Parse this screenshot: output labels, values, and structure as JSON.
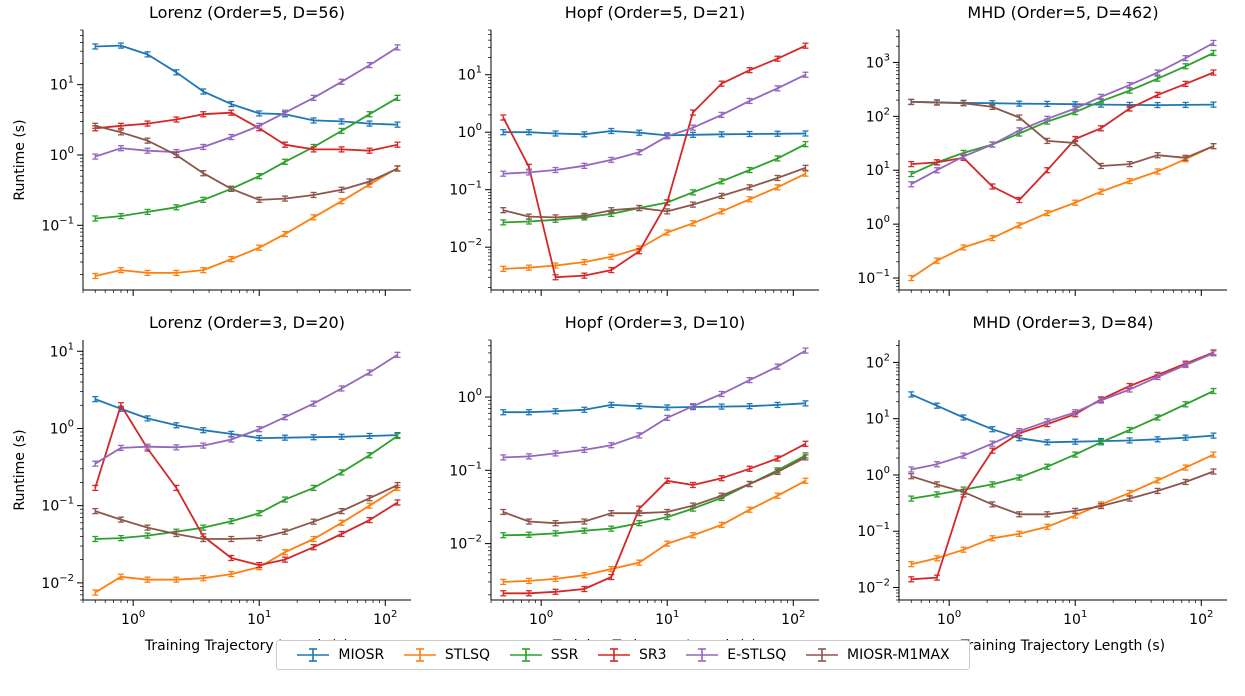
{
  "figure": {
    "xlabel": "Training Trajectory Length (s)",
    "ylabel": "Runtime (s)"
  },
  "chart_data": [
    {
      "type": "line",
      "title": "Lorenz (Order=5, D=56)",
      "ylabel": "Runtime (s)",
      "xlabel": "",
      "xscale": "log",
      "yscale": "log",
      "xlim": [
        0.4,
        160
      ],
      "ylim": [
        0.012,
        60
      ],
      "xticks": [
        1,
        10,
        100
      ],
      "xtick_labels": [],
      "yticks": [
        0.1,
        1,
        10
      ],
      "ytick_labels": [
        "10^-1",
        "10^0",
        "10^1"
      ],
      "x": [
        0.5,
        0.8,
        1.3,
        2.2,
        3.6,
        6,
        10,
        16,
        27,
        45,
        75,
        125
      ],
      "series": [
        {
          "name": "MIOSR",
          "color": "#1f77b4",
          "values": [
            35,
            36,
            27,
            15,
            8,
            5.3,
            3.9,
            3.8,
            3.1,
            3.0,
            2.8,
            2.7
          ]
        },
        {
          "name": "STLSQ",
          "color": "#ff7f0e",
          "values": [
            0.019,
            0.023,
            0.021,
            0.021,
            0.023,
            0.033,
            0.048,
            0.075,
            0.13,
            0.22,
            0.38,
            0.65
          ]
        },
        {
          "name": "SSR",
          "color": "#2ca02c",
          "values": [
            0.125,
            0.135,
            0.155,
            0.18,
            0.23,
            0.33,
            0.5,
            0.8,
            1.3,
            2.2,
            3.8,
            6.5
          ]
        },
        {
          "name": "SR3",
          "color": "#d62728",
          "values": [
            2.4,
            2.6,
            2.8,
            3.2,
            3.8,
            4.0,
            2.4,
            1.4,
            1.2,
            1.2,
            1.15,
            1.4
          ]
        },
        {
          "name": "E-STLSQ",
          "color": "#9467bd",
          "values": [
            0.95,
            1.25,
            1.15,
            1.1,
            1.3,
            1.8,
            2.6,
            4.0,
            6.5,
            11,
            19,
            34
          ]
        },
        {
          "name": "MIOSR-M1MAX",
          "color": "#8c564b",
          "values": [
            2.6,
            2.1,
            1.6,
            1.0,
            0.55,
            0.33,
            0.23,
            0.24,
            0.27,
            0.32,
            0.42,
            0.64
          ]
        }
      ]
    },
    {
      "type": "line",
      "title": "Hopf (Order=5, D=21)",
      "ylabel": "",
      "xlabel": "",
      "xscale": "log",
      "yscale": "log",
      "xlim": [
        0.4,
        160
      ],
      "ylim": [
        0.0018,
        60
      ],
      "xticks": [
        1,
        10,
        100
      ],
      "xtick_labels": [],
      "yticks": [
        0.01,
        0.1,
        1,
        10
      ],
      "ytick_labels": [
        "10^-2",
        "10^-1",
        "10^0",
        "10^1"
      ],
      "x": [
        0.5,
        0.8,
        1.3,
        2.2,
        3.6,
        6,
        10,
        16,
        27,
        45,
        75,
        125
      ],
      "series": [
        {
          "name": "MIOSR",
          "color": "#1f77b4",
          "values": [
            1.0,
            1.0,
            0.95,
            0.92,
            1.05,
            0.98,
            0.88,
            0.9,
            0.92,
            0.93,
            0.94,
            0.95
          ]
        },
        {
          "name": "STLSQ",
          "color": "#ff7f0e",
          "values": [
            0.0042,
            0.0044,
            0.0048,
            0.0055,
            0.0068,
            0.0095,
            0.018,
            0.026,
            0.042,
            0.068,
            0.11,
            0.19
          ]
        },
        {
          "name": "SSR",
          "color": "#2ca02c",
          "values": [
            0.027,
            0.028,
            0.03,
            0.033,
            0.038,
            0.048,
            0.06,
            0.09,
            0.14,
            0.22,
            0.35,
            0.62
          ]
        },
        {
          "name": "SR3",
          "color": "#d62728",
          "values": [
            1.8,
            0.25,
            0.003,
            0.0032,
            0.004,
            0.0085,
            0.06,
            2.2,
            7,
            12,
            19,
            32
          ]
        },
        {
          "name": "E-STLSQ",
          "color": "#9467bd",
          "values": [
            0.19,
            0.2,
            0.22,
            0.26,
            0.33,
            0.45,
            0.85,
            1.2,
            2.0,
            3.5,
            5.8,
            10
          ]
        },
        {
          "name": "MIOSR-M1MAX",
          "color": "#8c564b",
          "values": [
            0.044,
            0.034,
            0.033,
            0.035,
            0.044,
            0.048,
            0.042,
            0.055,
            0.078,
            0.11,
            0.16,
            0.24
          ]
        }
      ]
    },
    {
      "type": "line",
      "title": "MHD (Order=5, D=462)",
      "ylabel": "",
      "xlabel": "",
      "xscale": "log",
      "yscale": "log",
      "xlim": [
        0.4,
        160
      ],
      "ylim": [
        0.06,
        4000
      ],
      "xticks": [
        1,
        10,
        100
      ],
      "xtick_labels": [],
      "yticks": [
        0.1,
        1,
        10,
        100,
        1000
      ],
      "ytick_labels": [
        "10^-1",
        "10^0",
        "10^1",
        "10^2",
        "10^3"
      ],
      "x": [
        0.5,
        0.8,
        1.3,
        2.2,
        3.6,
        6,
        10,
        16,
        27,
        45,
        75,
        125
      ],
      "series": [
        {
          "name": "MIOSR",
          "color": "#1f77b4",
          "values": [
            185,
            182,
            178,
            175,
            172,
            170,
            168,
            165,
            163,
            162,
            163,
            165
          ]
        },
        {
          "name": "STLSQ",
          "color": "#ff7f0e",
          "values": [
            0.1,
            0.21,
            0.37,
            0.55,
            0.95,
            1.6,
            2.5,
            4.0,
            6.3,
            9.5,
            16,
            28
          ]
        },
        {
          "name": "SSR",
          "color": "#2ca02c",
          "values": [
            8.5,
            14,
            21,
            30,
            48,
            80,
            120,
            190,
            300,
            500,
            850,
            1500
          ]
        },
        {
          "name": "SR3",
          "color": "#d62728",
          "values": [
            13,
            14,
            17,
            5,
            2.8,
            10,
            38,
            60,
            140,
            250,
            400,
            650
          ]
        },
        {
          "name": "E-STLSQ",
          "color": "#9467bd",
          "values": [
            5.5,
            10,
            18,
            30,
            55,
            90,
            140,
            230,
            380,
            650,
            1200,
            2300
          ]
        },
        {
          "name": "MIOSR-M1MAX",
          "color": "#8c564b",
          "values": [
            185,
            180,
            175,
            150,
            95,
            35,
            32,
            12,
            13,
            19,
            17,
            28
          ]
        }
      ]
    },
    {
      "type": "line",
      "title": "Lorenz (Order=3, D=20)",
      "ylabel": "Runtime (s)",
      "xlabel": "Training Trajectory Length (s)",
      "xscale": "log",
      "yscale": "log",
      "xlim": [
        0.4,
        160
      ],
      "ylim": [
        0.006,
        14
      ],
      "xticks": [
        1,
        10,
        100
      ],
      "xtick_labels": [
        "10^0",
        "10^1",
        "10^2"
      ],
      "yticks": [
        0.01,
        0.1,
        1,
        10
      ],
      "ytick_labels": [
        "10^-2",
        "10^-1",
        "10^0",
        "10^1"
      ],
      "x": [
        0.5,
        0.8,
        1.3,
        2.2,
        3.6,
        6,
        10,
        16,
        27,
        45,
        75,
        125
      ],
      "series": [
        {
          "name": "MIOSR",
          "color": "#1f77b4",
          "values": [
            2.4,
            1.8,
            1.35,
            1.1,
            0.95,
            0.85,
            0.75,
            0.76,
            0.77,
            0.78,
            0.8,
            0.82
          ]
        },
        {
          "name": "STLSQ",
          "color": "#ff7f0e",
          "values": [
            0.0075,
            0.012,
            0.011,
            0.011,
            0.0115,
            0.013,
            0.016,
            0.025,
            0.037,
            0.06,
            0.1,
            0.17
          ]
        },
        {
          "name": "SSR",
          "color": "#2ca02c",
          "values": [
            0.037,
            0.038,
            0.041,
            0.046,
            0.052,
            0.063,
            0.08,
            0.12,
            0.17,
            0.27,
            0.45,
            0.8
          ]
        },
        {
          "name": "SR3",
          "color": "#d62728",
          "values": [
            0.17,
            2.0,
            0.55,
            0.17,
            0.04,
            0.021,
            0.017,
            0.02,
            0.029,
            0.043,
            0.065,
            0.11
          ]
        },
        {
          "name": "E-STLSQ",
          "color": "#9467bd",
          "values": [
            0.35,
            0.56,
            0.58,
            0.57,
            0.6,
            0.72,
            0.98,
            1.4,
            2.1,
            3.3,
            5.3,
            9
          ]
        },
        {
          "name": "MIOSR-M1MAX",
          "color": "#8c564b",
          "values": [
            0.085,
            0.066,
            0.052,
            0.043,
            0.037,
            0.037,
            0.038,
            0.046,
            0.062,
            0.085,
            0.125,
            0.185
          ]
        }
      ]
    },
    {
      "type": "line",
      "title": "Hopf (Order=3, D=10)",
      "ylabel": "",
      "xlabel": "Training Trajectory Length (s)",
      "xscale": "log",
      "yscale": "log",
      "xlim": [
        0.4,
        160
      ],
      "ylim": [
        0.0017,
        6
      ],
      "xticks": [
        1,
        10,
        100
      ],
      "xtick_labels": [
        "10^0",
        "10^1",
        "10^2"
      ],
      "yticks": [
        0.01,
        0.1,
        1
      ],
      "ytick_labels": [
        "10^-2",
        "10^-1",
        "10^0"
      ],
      "x": [
        0.5,
        0.8,
        1.3,
        2.2,
        3.6,
        6,
        10,
        16,
        27,
        45,
        75,
        125
      ],
      "series": [
        {
          "name": "MIOSR",
          "color": "#1f77b4",
          "values": [
            0.62,
            0.62,
            0.64,
            0.67,
            0.78,
            0.75,
            0.72,
            0.73,
            0.74,
            0.75,
            0.78,
            0.82
          ]
        },
        {
          "name": "STLSQ",
          "color": "#ff7f0e",
          "values": [
            0.003,
            0.0031,
            0.0033,
            0.0037,
            0.0045,
            0.0055,
            0.01,
            0.013,
            0.018,
            0.029,
            0.045,
            0.072
          ]
        },
        {
          "name": "SSR",
          "color": "#2ca02c",
          "values": [
            0.013,
            0.0132,
            0.0138,
            0.015,
            0.016,
            0.019,
            0.023,
            0.03,
            0.042,
            0.065,
            0.1,
            0.16
          ]
        },
        {
          "name": "SR3",
          "color": "#d62728",
          "values": [
            0.0021,
            0.0021,
            0.0022,
            0.0024,
            0.0035,
            0.03,
            0.072,
            0.063,
            0.078,
            0.105,
            0.145,
            0.23
          ]
        },
        {
          "name": "E-STLSQ",
          "color": "#9467bd",
          "values": [
            0.15,
            0.155,
            0.17,
            0.19,
            0.22,
            0.3,
            0.52,
            0.75,
            1.1,
            1.7,
            2.6,
            4.3
          ]
        },
        {
          "name": "MIOSR-M1MAX",
          "color": "#8c564b",
          "values": [
            0.027,
            0.02,
            0.019,
            0.02,
            0.026,
            0.026,
            0.027,
            0.033,
            0.045,
            0.065,
            0.095,
            0.15
          ]
        }
      ]
    },
    {
      "type": "line",
      "title": "MHD (Order=3, D=84)",
      "ylabel": "",
      "xlabel": "Training Trajectory Length (s)",
      "xscale": "log",
      "yscale": "log",
      "xlim": [
        0.4,
        160
      ],
      "ylim": [
        0.006,
        250
      ],
      "xticks": [
        1,
        10,
        100
      ],
      "xtick_labels": [
        "10^0",
        "10^1",
        "10^2"
      ],
      "yticks": [
        0.01,
        0.1,
        1,
        10,
        100
      ],
      "ytick_labels": [
        "10^-2",
        "10^-1",
        "10^0",
        "10^1",
        "10^2"
      ],
      "x": [
        0.5,
        0.8,
        1.3,
        2.2,
        3.6,
        6,
        10,
        16,
        27,
        45,
        75,
        125
      ],
      "series": [
        {
          "name": "MIOSR",
          "color": "#1f77b4",
          "values": [
            27,
            17,
            10.5,
            6.5,
            4.5,
            3.8,
            3.9,
            4.0,
            4.1,
            4.3,
            4.6,
            5.0
          ]
        },
        {
          "name": "STLSQ",
          "color": "#ff7f0e",
          "values": [
            0.026,
            0.033,
            0.047,
            0.075,
            0.09,
            0.12,
            0.19,
            0.3,
            0.48,
            0.8,
            1.35,
            2.3
          ]
        },
        {
          "name": "SSR",
          "color": "#2ca02c",
          "values": [
            0.38,
            0.45,
            0.55,
            0.68,
            0.9,
            1.4,
            2.3,
            3.8,
            6.3,
            10.5,
            18,
            31
          ]
        },
        {
          "name": "SR3",
          "color": "#d62728",
          "values": [
            0.014,
            0.015,
            0.45,
            2.7,
            5.5,
            8,
            12,
            22,
            38,
            60,
            95,
            150
          ]
        },
        {
          "name": "E-STLSQ",
          "color": "#9467bd",
          "values": [
            1.25,
            1.55,
            2.2,
            3.6,
            6,
            9,
            13,
            21,
            33,
            55,
            90,
            145
          ]
        },
        {
          "name": "MIOSR-M1MAX",
          "color": "#8c564b",
          "values": [
            0.95,
            0.68,
            0.5,
            0.3,
            0.2,
            0.2,
            0.23,
            0.28,
            0.38,
            0.52,
            0.75,
            1.15
          ]
        }
      ]
    }
  ],
  "legend": {
    "items": [
      {
        "label": "MIOSR",
        "color": "#1f77b4"
      },
      {
        "label": "STLSQ",
        "color": "#ff7f0e"
      },
      {
        "label": "SSR",
        "color": "#2ca02c"
      },
      {
        "label": "SR3",
        "color": "#d62728"
      },
      {
        "label": "E-STLSQ",
        "color": "#9467bd"
      },
      {
        "label": "MIOSR-M1MAX",
        "color": "#8c564b"
      }
    ]
  }
}
